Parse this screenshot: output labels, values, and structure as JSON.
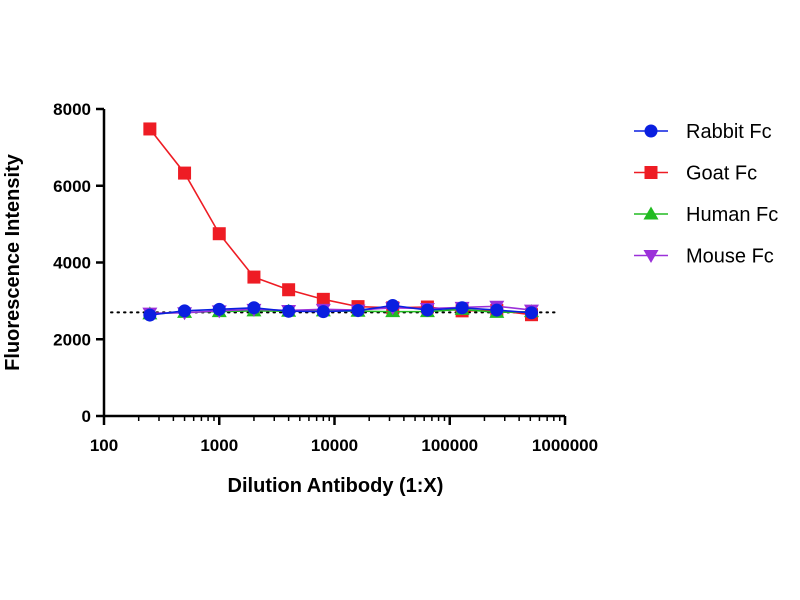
{
  "chart_data": {
    "type": "line",
    "xscale": "log",
    "xlabel": "Dilution Antibody (1:X)",
    "ylabel": "Fluorescence Intensity",
    "xlim": [
      100,
      1000000
    ],
    "ylim": [
      0,
      8000
    ],
    "xticks": [
      100,
      1000,
      10000,
      100000,
      1000000
    ],
    "xtick_labels": [
      "100",
      "1000",
      "10000",
      "100000",
      "1000000"
    ],
    "yticks": [
      0,
      2000,
      4000,
      6000,
      8000
    ],
    "ytick_labels": [
      "0",
      "2000",
      "4000",
      "6000",
      "8000"
    ],
    "grid": false,
    "legend_position": "right",
    "reference_line": {
      "y": 2700,
      "style": "dotted"
    },
    "x": [
      250,
      500,
      1000,
      2000,
      4000,
      8000,
      16000,
      32000,
      64000,
      128000,
      256000,
      512000
    ],
    "series": [
      {
        "name": "Goat Fc",
        "color": "#ee1c24",
        "marker": "square",
        "values": [
          7480,
          6330,
          4750,
          3620,
          3290,
          3040,
          2850,
          2820,
          2840,
          2740,
          2750,
          2640
        ]
      },
      {
        "name": "Human Fc",
        "color": "#22bb22",
        "marker": "triangle-up",
        "values": [
          2660,
          2700,
          2720,
          2740,
          2730,
          2740,
          2730,
          2720,
          2720,
          2780,
          2700,
          2720
        ]
      },
      {
        "name": "Mouse Fc",
        "color": "#9b30d9",
        "marker": "triangle-down",
        "values": [
          2680,
          2690,
          2740,
          2780,
          2750,
          2780,
          2760,
          2820,
          2800,
          2830,
          2860,
          2760
        ]
      },
      {
        "name": "Rabbit Fc",
        "color": "#0a1fe0",
        "marker": "circle",
        "values": [
          2630,
          2740,
          2780,
          2820,
          2730,
          2720,
          2750,
          2880,
          2760,
          2820,
          2760,
          2690
        ]
      }
    ],
    "legend_order": [
      "Rabbit Fc",
      "Goat Fc",
      "Human Fc",
      "Mouse Fc"
    ]
  }
}
